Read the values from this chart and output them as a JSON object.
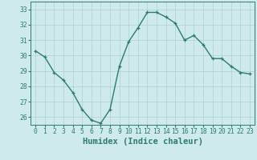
{
  "x": [
    0,
    1,
    2,
    3,
    4,
    5,
    6,
    7,
    8,
    9,
    10,
    11,
    12,
    13,
    14,
    15,
    16,
    17,
    18,
    19,
    20,
    21,
    22,
    23
  ],
  "y": [
    30.3,
    29.9,
    28.9,
    28.4,
    27.6,
    26.5,
    25.8,
    25.6,
    26.5,
    29.3,
    30.9,
    31.8,
    32.8,
    32.8,
    32.5,
    32.1,
    31.0,
    31.3,
    30.7,
    29.8,
    29.8,
    29.3,
    28.9,
    28.8
  ],
  "line_color": "#2d7c6e",
  "marker": "+",
  "markersize": 3.5,
  "bg_color": "#ceeaea",
  "grid_color": "#b0d0d0",
  "xlabel": "Humidex (Indice chaleur)",
  "ylim": [
    25.5,
    33.5
  ],
  "xlim": [
    -0.5,
    23.5
  ],
  "yticks": [
    26,
    27,
    28,
    29,
    30,
    31,
    32,
    33
  ],
  "xticks": [
    0,
    1,
    2,
    3,
    4,
    5,
    6,
    7,
    8,
    9,
    10,
    11,
    12,
    13,
    14,
    15,
    16,
    17,
    18,
    19,
    20,
    21,
    22,
    23
  ],
  "tick_fontsize": 5.8,
  "xlabel_fontsize": 7.5,
  "linewidth": 1.0,
  "markeredgewidth": 0.9
}
